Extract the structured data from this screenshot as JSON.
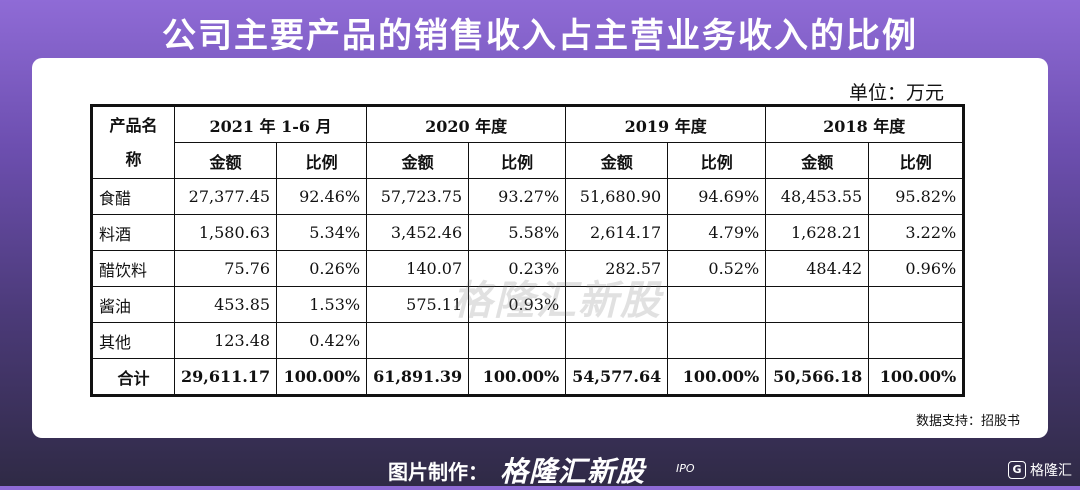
{
  "title": "公司主要产品的销售收入占主营业务收入的比例",
  "unit": "单位：万元",
  "table": {
    "header_first": "产品名称",
    "periods": [
      "2021 年 1-6 月",
      "2020 年度",
      "2019 年度",
      "2018 年度"
    ],
    "sub_amount": "金额",
    "sub_ratio": "比例",
    "rows": [
      {
        "name": "食醋",
        "cells": [
          "27,377.45",
          "92.46%",
          "57,723.75",
          "93.27%",
          "51,680.90",
          "94.69%",
          "48,453.55",
          "95.82%"
        ]
      },
      {
        "name": "料酒",
        "cells": [
          "1,580.63",
          "5.34%",
          "3,452.46",
          "5.58%",
          "2,614.17",
          "4.79%",
          "1,628.21",
          "3.22%"
        ]
      },
      {
        "name": "醋饮料",
        "cells": [
          "75.76",
          "0.26%",
          "140.07",
          "0.23%",
          "282.57",
          "0.52%",
          "484.42",
          "0.96%"
        ]
      },
      {
        "name": "酱油",
        "cells": [
          "453.85",
          "1.53%",
          "575.11",
          "0.93%",
          "",
          "",
          "",
          ""
        ]
      },
      {
        "name": "其他",
        "cells": [
          "123.48",
          "0.42%",
          "",
          "",
          "",
          "",
          "",
          ""
        ]
      }
    ],
    "total": {
      "name": "合计",
      "cells": [
        "29,611.17",
        "100.00%",
        "61,891.39",
        "100.00%",
        "54,577.64",
        "100.00%",
        "50,566.18",
        "100.00%"
      ]
    }
  },
  "source": "数据支持：招股书",
  "watermark": "格隆汇新股",
  "footer": {
    "label": "图片制作：",
    "logo": "格隆汇新股",
    "logo_sub": "IPO"
  },
  "corner_brand": {
    "icon": "G",
    "text": "格隆汇"
  }
}
